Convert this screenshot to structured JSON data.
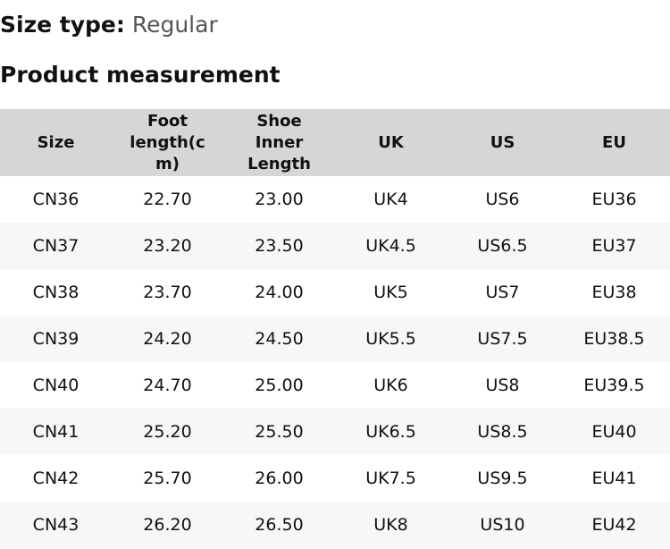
{
  "size_type": {
    "label": "Size type:",
    "value": "Regular"
  },
  "section_title": "Product measurement",
  "table": {
    "headers": [
      "Size",
      "Foot length(cm)",
      "Shoe Inner Length",
      "UK",
      "US",
      "EU"
    ],
    "rows": [
      [
        "CN36",
        "22.70",
        "23.00",
        "UK4",
        "US6",
        "EU36"
      ],
      [
        "CN37",
        "23.20",
        "23.50",
        "UK4.5",
        "US6.5",
        "EU37"
      ],
      [
        "CN38",
        "23.70",
        "24.00",
        "UK5",
        "US7",
        "EU38"
      ],
      [
        "CN39",
        "24.20",
        "24.50",
        "UK5.5",
        "US7.5",
        "EU38.5"
      ],
      [
        "CN40",
        "24.70",
        "25.00",
        "UK6",
        "US8",
        "EU39.5"
      ],
      [
        "CN41",
        "25.20",
        "25.50",
        "UK6.5",
        "US8.5",
        "EU40"
      ],
      [
        "CN42",
        "25.70",
        "26.00",
        "UK7.5",
        "US9.5",
        "EU41"
      ],
      [
        "CN43",
        "26.20",
        "26.50",
        "UK8",
        "US10",
        "EU42"
      ]
    ]
  }
}
